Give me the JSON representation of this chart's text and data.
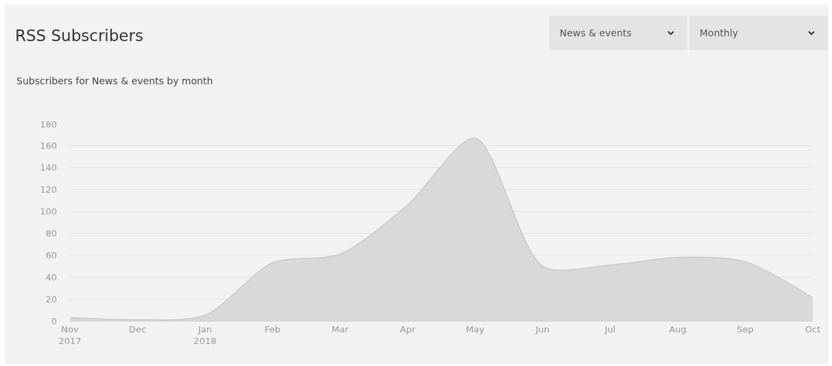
{
  "chart_data": {
    "type": "area",
    "title": "RSS Subscribers",
    "subtitle": "Subscribers for News & events by month",
    "annotations": [
      "News & events",
      "Monthly"
    ],
    "categories": [
      "Nov\n2017",
      "Dec",
      "Jan\n2018",
      "Feb",
      "Mar",
      "Apr",
      "May",
      "Jun",
      "Jul",
      "Aug",
      "Sep",
      "Oct"
    ],
    "series": [
      {
        "color": "#d9d9d9",
        "values": [
          3,
          1,
          5,
          53,
          61,
          106,
          167,
          50,
          51,
          58,
          54,
          21
        ]
      }
    ],
    "ylim": [
      0,
      180
    ],
    "yticks": [
      0,
      20,
      40,
      60,
      80,
      100,
      120,
      140,
      160,
      180
    ],
    "grid": "y",
    "marker": "none",
    "line_style": "solid"
  }
}
